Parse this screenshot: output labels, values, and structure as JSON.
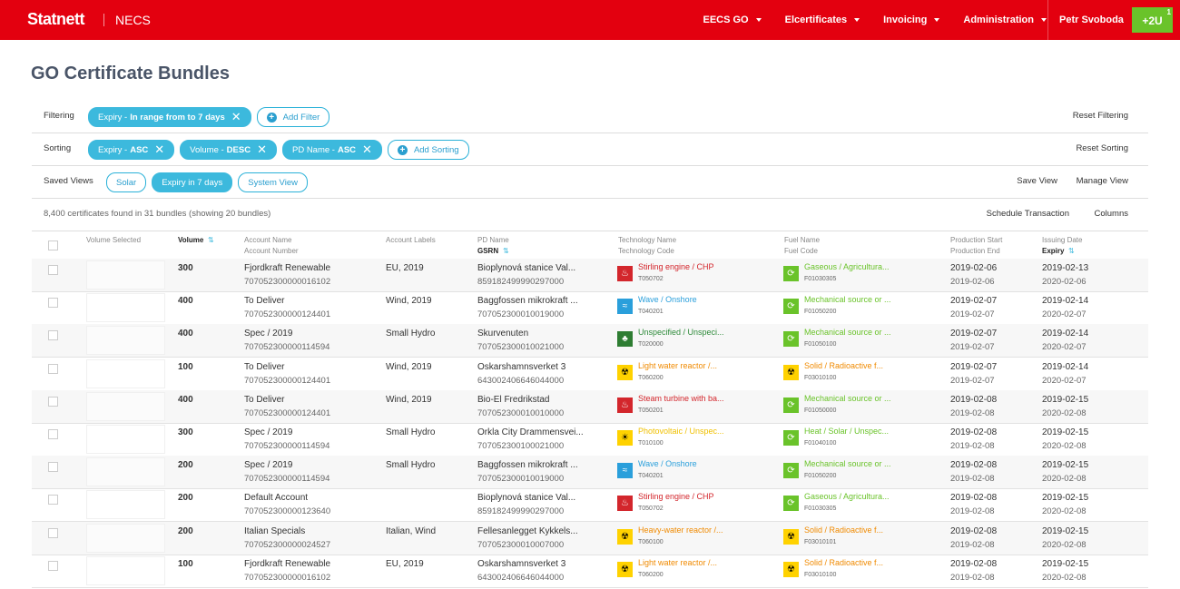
{
  "header": {
    "brand": "Statnett",
    "product": "NECS",
    "nav": [
      "EECS GO",
      "Elcertificates",
      "Invoicing",
      "Administration"
    ],
    "user": "Petr Svoboda",
    "badge": {
      "label": "+2U",
      "count": 1
    }
  },
  "title": "GO Certificate Bundles",
  "filtering": {
    "label": "Filtering",
    "chips": [
      {
        "field": "Expiry -",
        "value": "In range from to 7 days"
      }
    ],
    "add": "Add Filter",
    "reset": "Reset Filtering"
  },
  "sorting": {
    "label": "Sorting",
    "chips": [
      {
        "field": "Expiry -",
        "value": "ASC"
      },
      {
        "field": "Volume -",
        "value": "DESC"
      },
      {
        "field": "PD Name -",
        "value": "ASC"
      }
    ],
    "add": "Add Sorting",
    "reset": "Reset Sorting"
  },
  "saved_views": {
    "label": "Saved Views",
    "views": [
      "Solar",
      "Expiry in 7 days",
      "System View"
    ],
    "active": 1,
    "save": "Save View",
    "manage": "Manage View"
  },
  "summary": "8,400 certificates found in 31 bundles (showing 20 bundles)",
  "actions": [
    "Schedule Transaction",
    "Columns"
  ],
  "table": {
    "headers": {
      "volume_selected": "Volume Selected",
      "volume": "Volume",
      "account_name": "Account Name",
      "account_number": "Account Number",
      "account_labels": "Account Labels",
      "pd_name": "PD Name",
      "gsrn": "GSRN",
      "tech_name": "Technology Name",
      "tech_code": "Technology Code",
      "fuel_name": "Fuel Name",
      "fuel_code": "Fuel Code",
      "prod_start": "Production Start",
      "prod_end": "Production End",
      "issuing": "Issuing Date",
      "expiry": "Expiry"
    },
    "rows": [
      {
        "volume": 300,
        "account_name": "Fjordkraft Renewable",
        "account_number": "707052300000016102",
        "account_labels": "EU, 2019",
        "pd_name": "Bioplynová stanice Val...",
        "gsrn": "859182499990297000",
        "tech_name": "Stirling engine / CHP",
        "tech_code": "T050702",
        "fuel_name": "Gaseous / Agricultura...",
        "fuel_code": "F01030305",
        "prod_start": "2019-02-06",
        "prod_end": "2019-02-06",
        "issuing": "2019-02-13",
        "expiry": "2020-02-06"
      },
      {
        "volume": 400,
        "account_name": "To Deliver",
        "account_number": "707052300000124401",
        "account_labels": "Wind, 2019",
        "pd_name": "Baggfossen mikrokraft ...",
        "gsrn": "707052300010019000",
        "tech_name": "Wave / Onshore",
        "tech_code": "T040201",
        "fuel_name": "Mechanical source or ...",
        "fuel_code": "F01050200",
        "prod_start": "2019-02-07",
        "prod_end": "2019-02-07",
        "issuing": "2019-02-14",
        "expiry": "2020-02-07"
      },
      {
        "volume": 400,
        "account_name": "Spec / 2019",
        "account_number": "707052300000114594",
        "account_labels": "Small Hydro",
        "pd_name": "Skurvenuten",
        "gsrn": "707052300010021000",
        "tech_name": "Unspecified / Unspeci...",
        "tech_code": "T020000",
        "fuel_name": "Mechanical source or ...",
        "fuel_code": "F01050100",
        "prod_start": "2019-02-07",
        "prod_end": "2019-02-07",
        "issuing": "2019-02-14",
        "expiry": "2020-02-07"
      },
      {
        "volume": 100,
        "account_name": "To Deliver",
        "account_number": "707052300000124401",
        "account_labels": "Wind, 2019",
        "pd_name": "Oskarshamnsverket 3",
        "gsrn": "643002406646044000",
        "tech_name": "Light water reactor /...",
        "tech_code": "T060200",
        "fuel_name": "Solid / Radioactive f...",
        "fuel_code": "F03010100",
        "prod_start": "2019-02-07",
        "prod_end": "2019-02-07",
        "issuing": "2019-02-14",
        "expiry": "2020-02-07"
      },
      {
        "volume": 400,
        "account_name": "To Deliver",
        "account_number": "707052300000124401",
        "account_labels": "Wind, 2019",
        "pd_name": "Bio-El Fredrikstad",
        "gsrn": "707052300010010000",
        "tech_name": "Steam turbine with ba...",
        "tech_code": "T050201",
        "fuel_name": "Mechanical source or ...",
        "fuel_code": "F01050000",
        "prod_start": "2019-02-08",
        "prod_end": "2019-02-08",
        "issuing": "2019-02-15",
        "expiry": "2020-02-08"
      },
      {
        "volume": 300,
        "account_name": "Spec / 2019",
        "account_number": "707052300000114594",
        "account_labels": "Small Hydro",
        "pd_name": "Orkla City Drammensvei...",
        "gsrn": "707052300100021000",
        "tech_name": "Photovoltaic / Unspec...",
        "tech_code": "T010100",
        "fuel_name": "Heat / Solar / Unspec...",
        "fuel_code": "F01040100",
        "prod_start": "2019-02-08",
        "prod_end": "2019-02-08",
        "issuing": "2019-02-15",
        "expiry": "2020-02-08"
      },
      {
        "volume": 200,
        "account_name": "Spec / 2019",
        "account_number": "707052300000114594",
        "account_labels": "Small Hydro",
        "pd_name": "Baggfossen mikrokraft ...",
        "gsrn": "707052300010019000",
        "tech_name": "Wave / Onshore",
        "tech_code": "T040201",
        "fuel_name": "Mechanical source or ...",
        "fuel_code": "F01050200",
        "prod_start": "2019-02-08",
        "prod_end": "2019-02-08",
        "issuing": "2019-02-15",
        "expiry": "2020-02-08"
      },
      {
        "volume": 200,
        "account_name": "Default Account",
        "account_number": "707052300000123640",
        "account_labels": null,
        "pd_name": "Bioplynová stanice Val...",
        "gsrn": "859182499990297000",
        "tech_name": "Stirling engine / CHP",
        "tech_code": "T050702",
        "fuel_name": "Gaseous / Agricultura...",
        "fuel_code": "F01030305",
        "prod_start": "2019-02-08",
        "prod_end": "2019-02-08",
        "issuing": "2019-02-15",
        "expiry": "2020-02-08"
      },
      {
        "volume": 200,
        "account_name": "Italian Specials",
        "account_number": "707052300000024527",
        "account_labels": "Italian, Wind",
        "pd_name": "Fellesanlegget Kykkels...",
        "gsrn": "707052300010007000",
        "tech_name": "Heavy-water reactor /...",
        "tech_code": "T060100",
        "fuel_name": "Solid / Radioactive f...",
        "fuel_code": "F03010101",
        "prod_start": "2019-02-08",
        "prod_end": "2019-02-08",
        "issuing": "2019-02-15",
        "expiry": "2020-02-08"
      },
      {
        "volume": 100,
        "account_name": "Fjordkraft Renewable",
        "account_number": "707052300000016102",
        "account_labels": "EU, 2019",
        "pd_name": "Oskarshamnsverket 3",
        "gsrn": "643002406646044000",
        "tech_name": "Light water reactor /...",
        "tech_code": "T060200",
        "fuel_name": "Solid / Radioactive f...",
        "fuel_code": "F03010100",
        "prod_start": "2019-02-08",
        "prod_end": "2019-02-08",
        "issuing": "2019-02-15",
        "expiry": "2020-02-08"
      }
    ]
  }
}
